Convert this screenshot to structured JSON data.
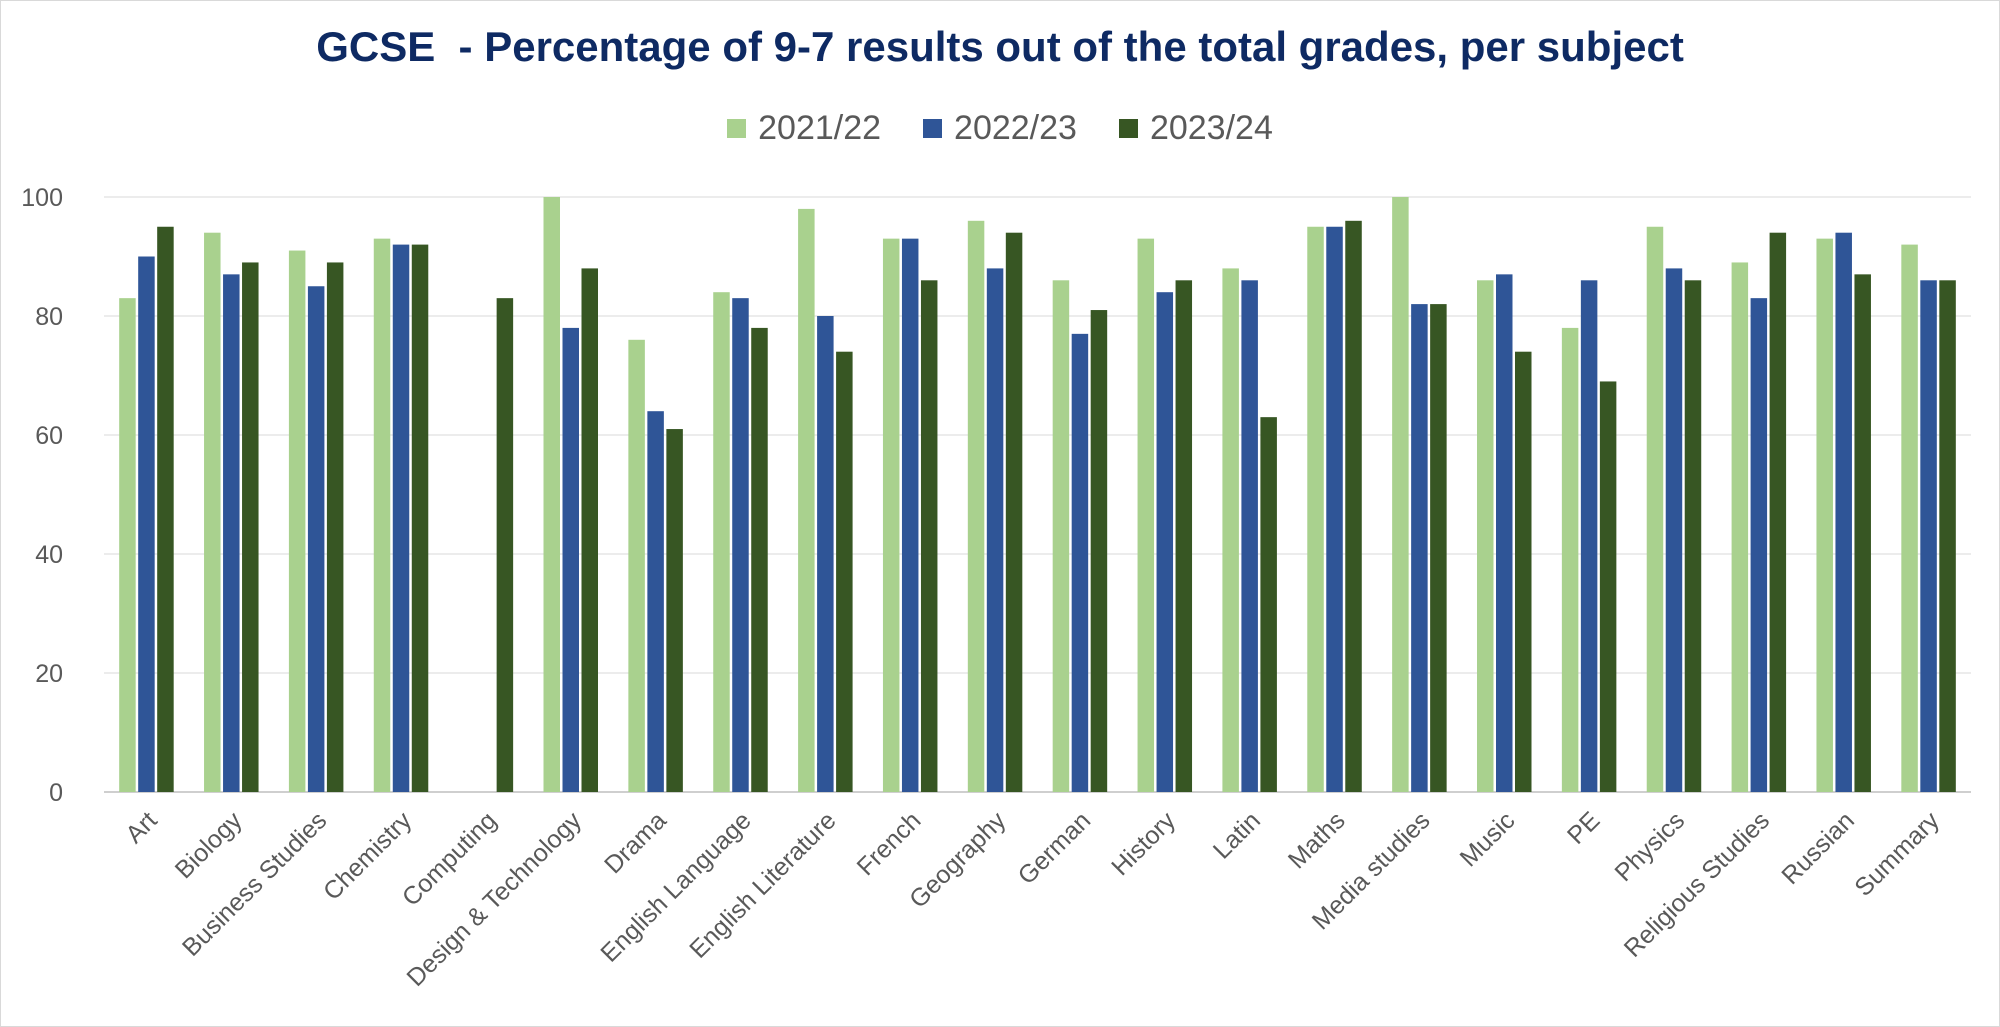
{
  "chart_data": {
    "type": "bar",
    "title": "GCSE  - Percentage of 9-7 results out of the total grades, per subject",
    "xlabel": "",
    "ylabel": "",
    "ylim": [
      0,
      100
    ],
    "yticks": [
      "0",
      "20",
      "40",
      "60",
      "80",
      "100"
    ],
    "grid": true,
    "legend_position": "top-center",
    "categories": [
      "Art",
      "Biology",
      "Business Studies",
      "Chemistry",
      "Computing",
      "Design & Technology",
      "Drama",
      "English Language",
      "English Literature",
      "French",
      "Geography",
      "German",
      "History",
      "Latin",
      "Maths",
      "Media studies",
      "Music",
      "PE",
      "Physics",
      "Religious Studies",
      "Russian",
      "Summary"
    ],
    "series": [
      {
        "name": "2021/22",
        "color": "#a9d18e",
        "values": [
          83,
          94,
          91,
          93,
          null,
          100,
          76,
          84,
          98,
          93,
          96,
          86,
          93,
          88,
          95,
          100,
          86,
          78,
          95,
          89,
          93,
          92
        ]
      },
      {
        "name": "2022/23",
        "color": "#2f5597",
        "values": [
          90,
          87,
          85,
          92,
          null,
          78,
          64,
          83,
          80,
          93,
          88,
          77,
          84,
          86,
          95,
          82,
          87,
          86,
          88,
          83,
          94,
          86
        ]
      },
      {
        "name": "2023/24",
        "color": "#375623",
        "values": [
          95,
          89,
          89,
          92,
          83,
          88,
          61,
          78,
          74,
          86,
          94,
          81,
          86,
          63,
          96,
          82,
          74,
          69,
          86,
          94,
          87,
          86
        ]
      }
    ]
  }
}
